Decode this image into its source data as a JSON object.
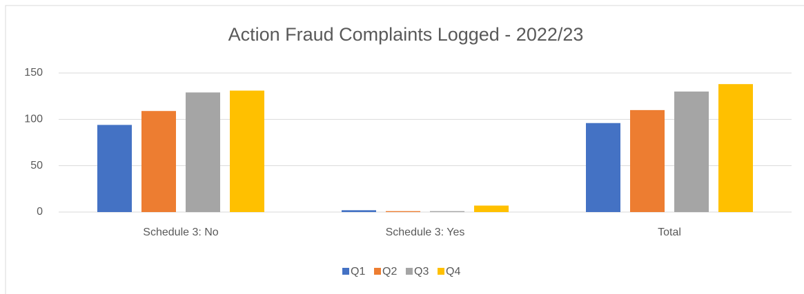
{
  "chart_data": {
    "type": "bar",
    "title": "Action Fraud Complaints Logged - 2022/23",
    "categories": [
      "Schedule 3: No",
      "Schedule 3: Yes",
      "Total"
    ],
    "series": [
      {
        "name": "Q1",
        "color": "#4472c4",
        "values": [
          94,
          2,
          96
        ]
      },
      {
        "name": "Q2",
        "color": "#ed7d31",
        "values": [
          109,
          1,
          110
        ]
      },
      {
        "name": "Q3",
        "color": "#a5a5a5",
        "values": [
          129,
          1,
          130
        ]
      },
      {
        "name": "Q4",
        "color": "#ffc000",
        "values": [
          131,
          7,
          138
        ]
      }
    ],
    "ylim": [
      0,
      150
    ],
    "yticks": [
      0,
      50,
      100,
      150
    ],
    "grid": true,
    "legend": "bottom"
  }
}
